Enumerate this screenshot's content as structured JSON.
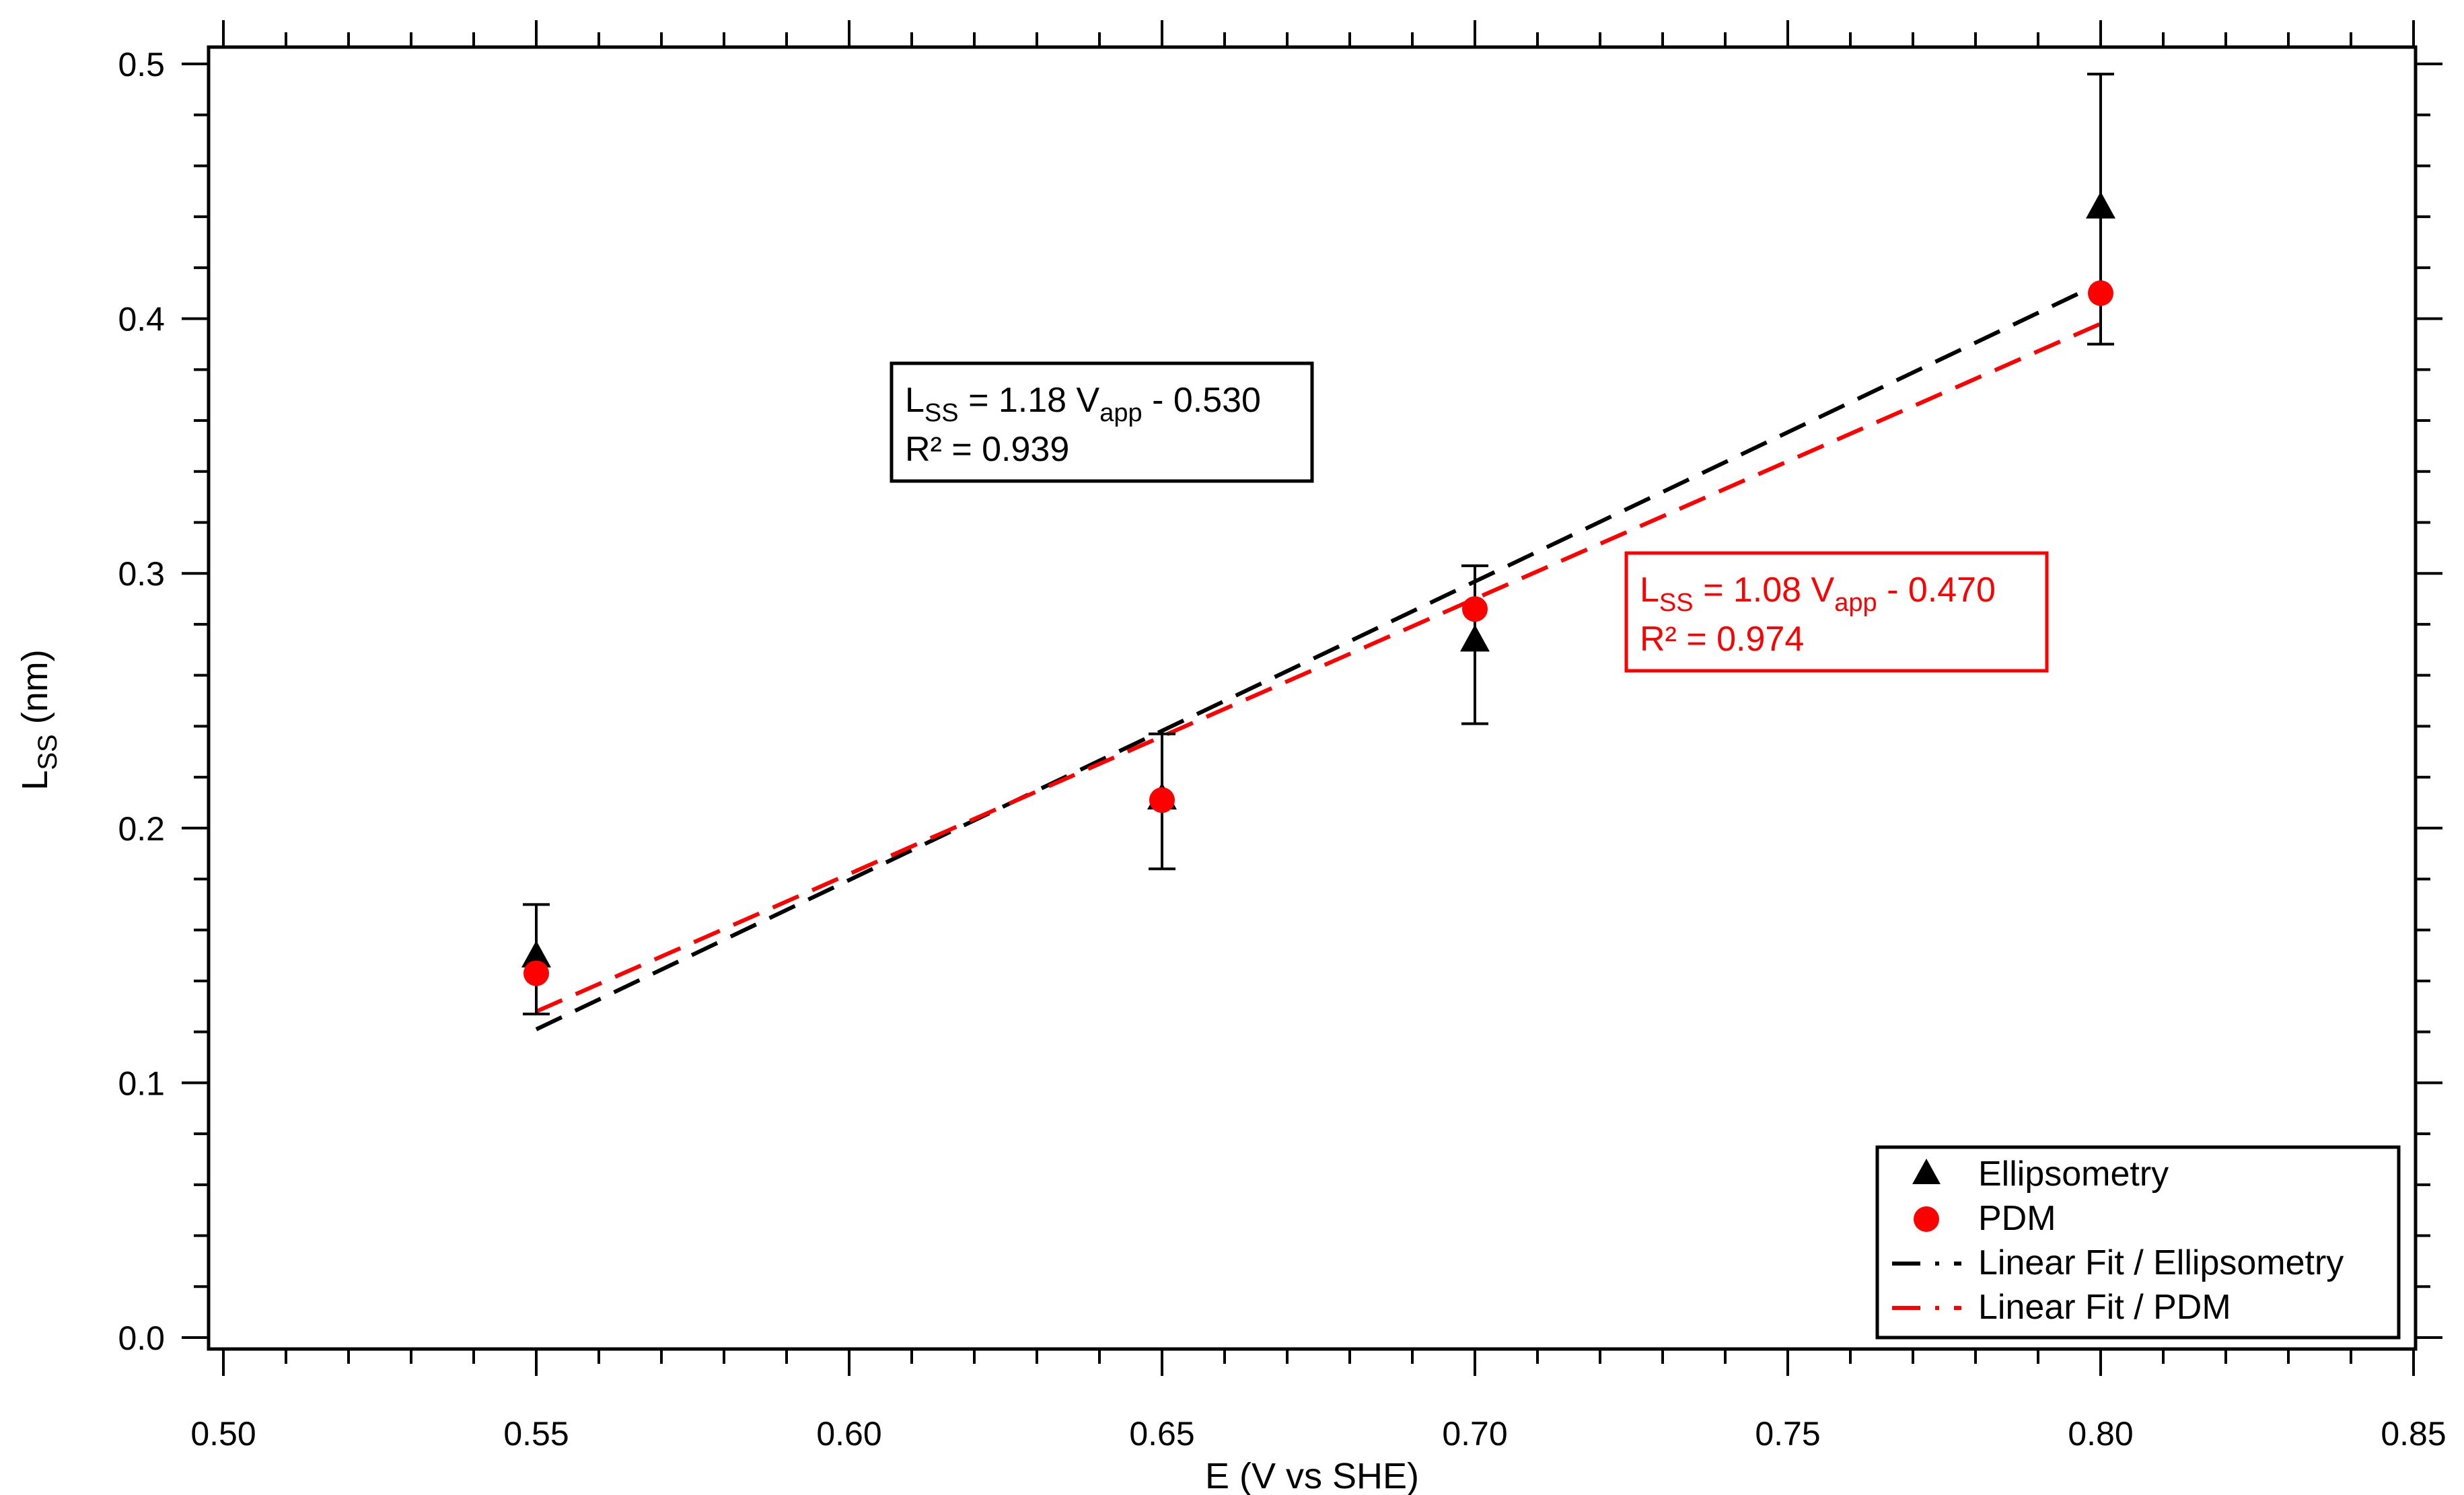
{
  "chart_data": {
    "type": "scatter",
    "xlabel": "E (V vs SHE)",
    "ylabel": {
      "main": "L",
      "sub": "SS",
      "unit": " (nm)"
    },
    "xlim": [
      0.5,
      0.85
    ],
    "ylim": [
      0.0,
      0.5
    ],
    "x_ticks": [
      "0.50",
      "0.55",
      "0.60",
      "0.65",
      "0.70",
      "0.75",
      "0.80",
      "0.85"
    ],
    "y_ticks": [
      "0.0",
      "0.1",
      "0.2",
      "0.3",
      "0.4",
      "0.5"
    ],
    "grid": false,
    "legend_position": "bottom-right",
    "colors": {
      "ellipsometry": "#000000",
      "pdm": "#ff0000"
    },
    "series": [
      {
        "name": "Ellipsometry",
        "marker": "triangle",
        "x": [
          0.55,
          0.65,
          0.7,
          0.8
        ],
        "y": [
          0.149,
          0.211,
          0.273,
          0.443
        ],
        "err_low": [
          0.127,
          0.184,
          0.241,
          0.39
        ],
        "err_high": [
          0.17,
          0.237,
          0.303,
          0.496
        ]
      },
      {
        "name": "PDM",
        "marker": "circle",
        "x": [
          0.55,
          0.65,
          0.7,
          0.8
        ],
        "y": [
          0.143,
          0.211,
          0.286,
          0.41
        ]
      }
    ],
    "fits": [
      {
        "name": "Linear Fit / Ellipsometry",
        "x": [
          0.55,
          0.8
        ],
        "y": [
          0.121,
          0.414
        ]
      },
      {
        "name": "Linear Fit / PDM",
        "x": [
          0.55,
          0.8
        ],
        "y": [
          0.128,
          0.398
        ]
      }
    ],
    "annotations": [
      {
        "id": "ellipsometry",
        "lhs": "L",
        "lhs_sub": "SS",
        "mid": " = 1.18 V",
        "mid_sub": "app",
        "rhs": " - 0.530",
        "r2": "R² = 0.939"
      },
      {
        "id": "pdm",
        "lhs": "L",
        "lhs_sub": "SS",
        "mid": " = 1.08 V",
        "mid_sub": "app",
        "rhs": " - 0.470",
        "r2": "R² = 0.974"
      }
    ]
  }
}
